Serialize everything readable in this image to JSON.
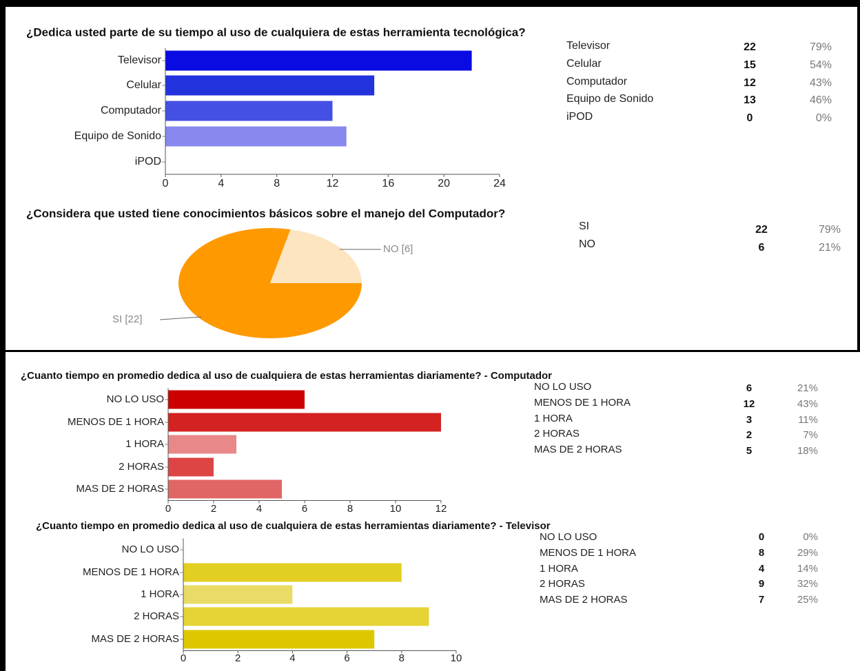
{
  "chart_data": [
    {
      "type": "bar",
      "title": "¿Dedica usted parte de su tiempo al uso de cualquiera de estas herramienta tecnológica?",
      "categories": [
        "Televisor",
        "Celular",
        "Computador",
        "Equipo de Sonido",
        "iPOD"
      ],
      "values": [
        22,
        15,
        12,
        13,
        0
      ],
      "shares": [
        "79%",
        "54%",
        "43%",
        "46%",
        "0%"
      ],
      "colors": [
        "#0a0ae2",
        "#2233dd",
        "#4450e4",
        "#8888ee",
        "#aaaaf2"
      ],
      "xlim": [
        0,
        24
      ],
      "xticks": [
        0,
        4,
        8,
        12,
        16,
        20,
        24
      ],
      "grid": false
    },
    {
      "type": "pie",
      "title": "¿Considera que usted tiene conocimientos básicos sobre el manejo del Computador?",
      "categories": [
        "SI",
        "NO"
      ],
      "values": [
        22,
        6
      ],
      "value_labels": [
        "SI [22]",
        "NO [6]"
      ],
      "shares": [
        "79%",
        "21%"
      ],
      "colors": [
        "#ff9900",
        "#fde5c2"
      ]
    },
    {
      "type": "bar",
      "title": "¿Cuanto tiempo en promedio dedica al uso de cualquiera de estas herramientas diariamente? - Computador",
      "categories": [
        "NO LO USO",
        "MENOS DE 1 HORA",
        "1 HORA",
        "2 HORAS",
        "MAS DE 2 HORAS"
      ],
      "values": [
        6,
        12,
        3,
        2,
        5
      ],
      "shares": [
        "21%",
        "43%",
        "11%",
        "7%",
        "18%"
      ],
      "colors": [
        "#cc0000",
        "#d42222",
        "#e88888",
        "#dd4444",
        "#e06666"
      ],
      "xlim": [
        0,
        12
      ],
      "xticks": [
        0,
        2,
        4,
        6,
        8,
        10,
        12
      ],
      "grid": false
    },
    {
      "type": "bar",
      "title": "¿Cuanto tiempo en promedio dedica al uso de cualquiera de estas herramientas diariamente? - Televisor",
      "categories": [
        "NO LO USO",
        "MENOS DE 1 HORA",
        "1 HORA",
        "2 HORAS",
        "MAS DE 2 HORAS"
      ],
      "values": [
        0,
        8,
        4,
        9,
        7
      ],
      "shares": [
        "0%",
        "29%",
        "14%",
        "32%",
        "25%"
      ],
      "colors": [
        "#f0e680",
        "#e3cf22",
        "#e8dc66",
        "#e5d433",
        "#ddc800"
      ],
      "xlim": [
        0,
        10
      ],
      "xticks": [
        0,
        2,
        4,
        6,
        8,
        10
      ],
      "grid": false
    }
  ]
}
